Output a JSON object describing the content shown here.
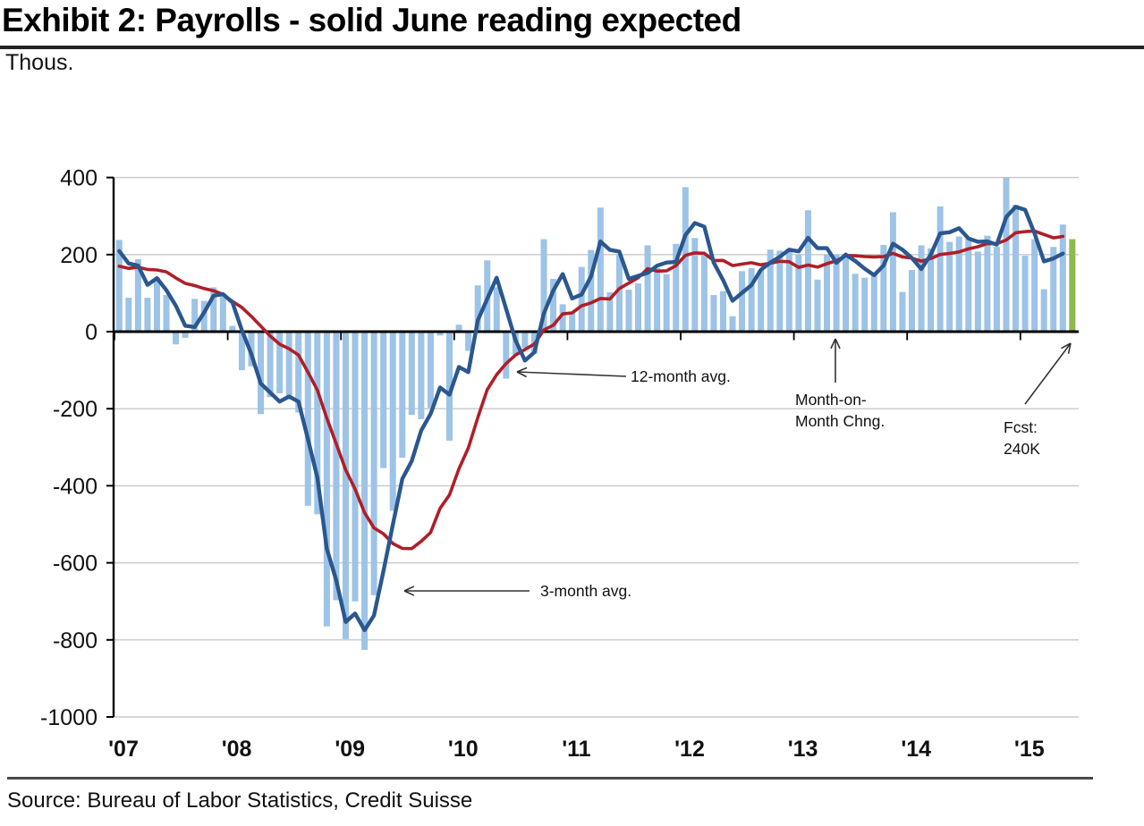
{
  "page": {
    "title": "Exhibit 2: Payrolls - solid June reading expected",
    "unit_label": "Thous.",
    "source": "Source: Bureau of Labor Statistics, Credit Suisse"
  },
  "annotations": {
    "avg12_label": "12-month avg.",
    "avg3_label": "3-month avg.",
    "mom_label": "Month-on-\nMonth Chng.",
    "forecast_label": "Fcst:\n240K"
  },
  "colors": {
    "bar": "#9DC3E6",
    "forecast_bar": "#8DB94E",
    "avg3_line": "#2B578F",
    "avg12_line": "#B01E28",
    "grid": "#C8C8C8",
    "axis": "#000000",
    "text": "#111111"
  },
  "chart_data": {
    "type": "bar",
    "title": "Exhibit 2: Payrolls - solid June reading expected",
    "ylabel": "Thous.",
    "ylim": [
      -1000,
      400
    ],
    "yticks": [
      400,
      200,
      0,
      -200,
      -400,
      -600,
      -800,
      -1000
    ],
    "grid": true,
    "legend": "annotated-arrows",
    "x_year_labels": [
      "'07",
      "'08",
      "'09",
      "'10",
      "'11",
      "'12",
      "'13",
      "'14",
      "'15"
    ],
    "start_month": "2007-01",
    "series": [
      {
        "name": "Month-on-Month Chng.",
        "type": "bar",
        "values": [
          238,
          88,
          188,
          88,
          140,
          95,
          -33,
          -16,
          85,
          80,
          115,
          97,
          15,
          -100,
          -90,
          -214,
          -170,
          -160,
          -175,
          -210,
          -452,
          -474,
          -765,
          -697,
          -798,
          -700,
          -826,
          -684,
          -354,
          -465,
          -327,
          -216,
          -227,
          -198,
          -10,
          -283,
          18,
          -50,
          120,
          185,
          115,
          -122,
          -61,
          -42,
          -57,
          240,
          137,
          71,
          50,
          168,
          212,
          322,
          102,
          200,
          109,
          125,
          224,
          165,
          149,
          228,
          375,
          243,
          200,
          95,
          105,
          40,
          157,
          165,
          160,
          213,
          210,
          215,
          200,
          315,
          135,
          200,
          200,
          200,
          150,
          140,
          150,
          225,
          310,
          103,
          160,
          224,
          216,
          325,
          233,
          247,
          245,
          208,
          249,
          220,
          423,
          329,
          197,
          240,
          110,
          220,
          278
        ]
      },
      {
        "name": "3-month avg.",
        "type": "line",
        "derived": "rolling_mean",
        "window": 3
      },
      {
        "name": "12-month avg.",
        "type": "line",
        "derived": "rolling_mean",
        "window": 12
      },
      {
        "name": "Fcst: 240K",
        "type": "bar",
        "month": "2015-06",
        "values": [
          240
        ],
        "forecast": true
      }
    ],
    "avg_seed_2006": [
      155,
      155,
      155,
      155,
      155,
      155,
      155,
      155,
      170,
      185,
      205
    ]
  }
}
